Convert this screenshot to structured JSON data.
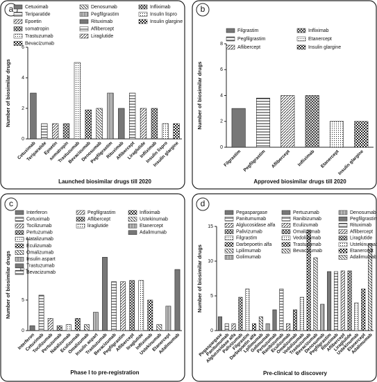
{
  "chart_data": [
    {
      "type": "bar",
      "panel_label": "a",
      "ylabel": "Number of biosimilar drugs",
      "xlabel": "Launched biosimilar drugs till 2020",
      "categories": [
        "Cetuximab",
        "Teriparatide",
        "Epoetin",
        "somatropin",
        "Trastuzumab",
        "Bevacizumab",
        "Denosumab",
        "Pegfilgrastim",
        "Rituximab",
        "Aflibercept",
        "Liraglutide",
        "Infliximab",
        "Insulin lispro",
        "Insulin glargine"
      ],
      "values": [
        3,
        1,
        1,
        1,
        5,
        1.9,
        2,
        3,
        2,
        3,
        2,
        2,
        1,
        1
      ],
      "ylim": [
        0,
        6
      ],
      "yticks": [
        0,
        2,
        4,
        6
      ]
    },
    {
      "type": "bar",
      "panel_label": "b",
      "ylabel": "Number of biosimilar drugs",
      "xlabel": "Approved biosimilar drugs till 2020",
      "categories": [
        "Filgrastim",
        "Pegfilgrastim",
        "Aflibercept",
        "Infliximab",
        "Etanercept",
        "Insulin glargine"
      ],
      "values": [
        3,
        3.8,
        4,
        4,
        2,
        2
      ],
      "ylim": [
        0,
        8
      ],
      "yticks": [
        0,
        2,
        4,
        6,
        8
      ]
    },
    {
      "type": "bar",
      "panel_label": "c",
      "ylabel": "Number of biosimilar drugs",
      "xlabel": "Phase I to pre-registration",
      "categories": [
        "Interferon",
        "Cetuximab",
        "Tocilizumab",
        "Pertuzumab",
        "Natalizumab",
        "Eculizumab",
        "Omalizumab",
        "Insulin aspart",
        "Trastuzumab",
        "Bevacizumab",
        "Pegfilgrastim",
        "Aflibercept",
        "liraglutide",
        "Infliximab",
        "Ustekinumab",
        "Etanercept",
        "Adalimumab"
      ],
      "values": [
        0.8,
        5.8,
        2,
        0.8,
        1,
        2,
        1,
        3,
        12,
        8,
        8,
        8.2,
        8.2,
        5,
        1,
        4,
        10
      ],
      "ylim": [
        0,
        15
      ],
      "yticks": [
        0,
        5,
        10,
        15
      ]
    },
    {
      "type": "bar",
      "panel_label": "d",
      "ylabel": "Number of biosimilar drugs",
      "xlabel": "Pre-clinical to discovery",
      "categories": [
        "Pegaspargase",
        "Panitumumab",
        "Alglucosidase alfa",
        "Palivizumab",
        "Filgrastim",
        "Darbepoetin alfa",
        "Lpilimumab",
        "Golimumab",
        "Pertuzumab",
        "Ranibizumab",
        "Eculizumab",
        "Omalizumab",
        "Vedolizumab",
        "Trastuzumab",
        "Bevacizumab",
        "Denosumab",
        "Pegfilgrastim",
        "Rituximab",
        "Aflibercept",
        "Liraglutide",
        "Ustekinumab",
        "Etanercept",
        "Adalimumab"
      ],
      "values": [
        2,
        1,
        1,
        4.8,
        6,
        1,
        2,
        1,
        3,
        6,
        1,
        3,
        4.8,
        14.5,
        10.5,
        3.8,
        8.5,
        8.5,
        8.6,
        8.6,
        4,
        6,
        12.5
      ],
      "ylim": [
        0,
        15
      ],
      "yticks": [
        0,
        5,
        10,
        15
      ]
    }
  ]
}
